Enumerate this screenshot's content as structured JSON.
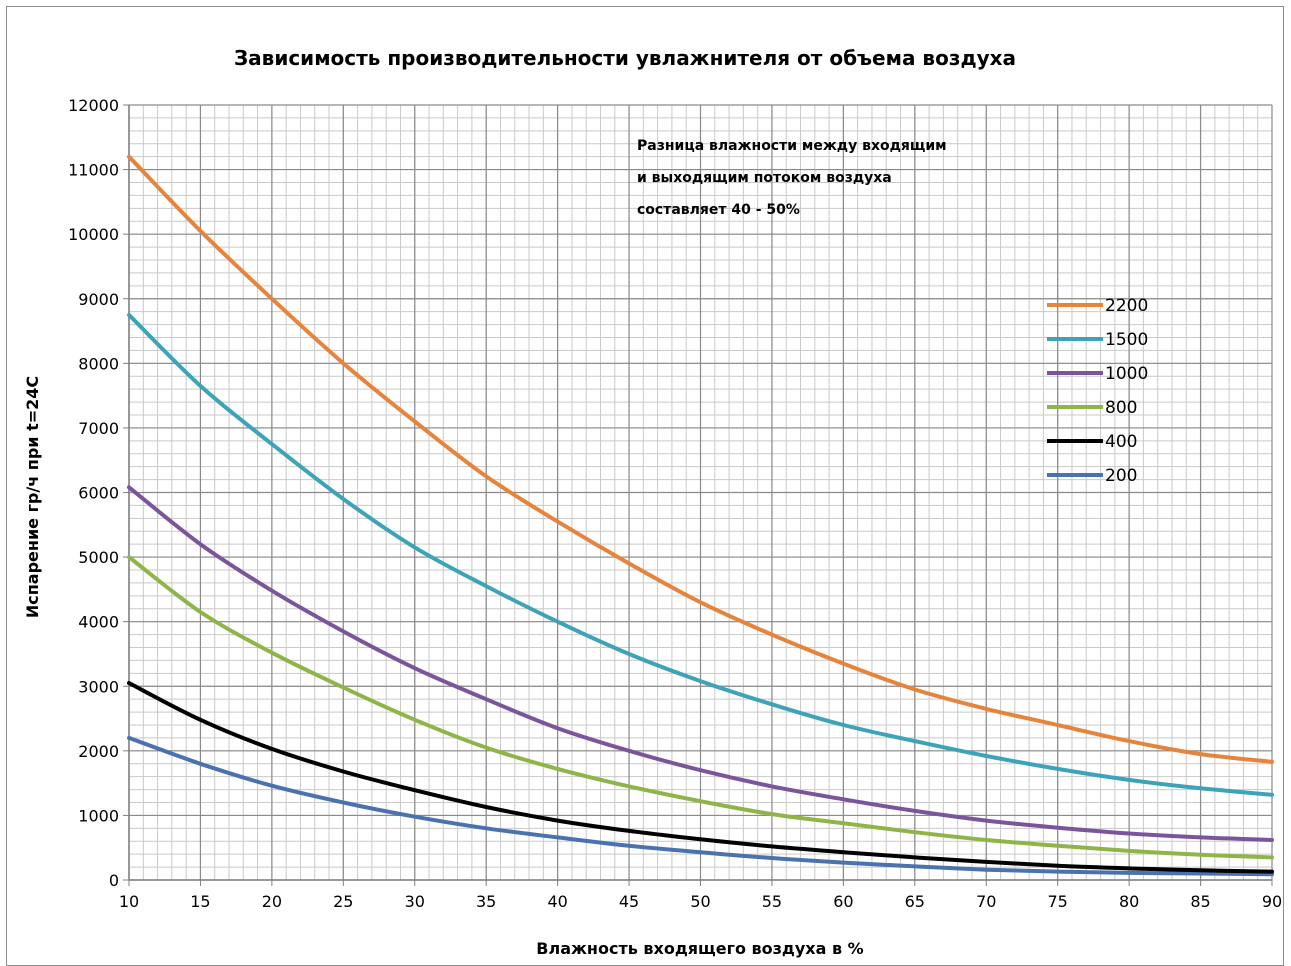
{
  "chart_data": {
    "type": "line",
    "title": "Зависимость производительности увлажнителя от объема воздуха",
    "xlabel": "Влажность входящего воздуха в %",
    "ylabel": "Испарение гр/ч при t=24C",
    "xlim": [
      10,
      90
    ],
    "ylim": [
      0,
      12000
    ],
    "x_ticks": [
      10,
      15,
      20,
      25,
      30,
      35,
      40,
      45,
      50,
      55,
      60,
      65,
      70,
      75,
      80,
      85,
      90
    ],
    "y_ticks": [
      0,
      1000,
      2000,
      3000,
      4000,
      5000,
      6000,
      7000,
      8000,
      9000,
      10000,
      11000,
      12000
    ],
    "grid": true,
    "legend_position": "right",
    "annotation": [
      "Разница влажности между входящим",
      "и выходящим  потоком воздуха",
      "составляет 40 - 50%"
    ],
    "x": [
      10,
      15,
      20,
      25,
      30,
      35,
      40,
      45,
      50,
      55,
      60,
      65,
      70,
      75,
      80,
      85,
      90
    ],
    "series": [
      {
        "name": "2200",
        "color": "#e6843c",
        "values": [
          11200,
          10050,
          9000,
          8000,
          7100,
          6250,
          5550,
          4900,
          4300,
          3800,
          3350,
          2950,
          2650,
          2400,
          2150,
          1950,
          1830
        ]
      },
      {
        "name": "1500",
        "color": "#3ca3b8",
        "values": [
          8750,
          7650,
          6750,
          5900,
          5150,
          4550,
          4000,
          3500,
          3080,
          2720,
          2400,
          2150,
          1920,
          1720,
          1550,
          1420,
          1320
        ]
      },
      {
        "name": "1000",
        "color": "#7b559b",
        "values": [
          6080,
          5200,
          4480,
          3850,
          3280,
          2800,
          2350,
          2000,
          1700,
          1450,
          1250,
          1070,
          920,
          810,
          720,
          660,
          620
        ]
      },
      {
        "name": "800",
        "color": "#8fb548",
        "values": [
          5000,
          4150,
          3520,
          2980,
          2480,
          2050,
          1720,
          1450,
          1220,
          1020,
          880,
          740,
          620,
          530,
          450,
          390,
          350
        ]
      },
      {
        "name": "400",
        "color": "#000000",
        "values": [
          3050,
          2480,
          2030,
          1680,
          1390,
          1130,
          920,
          760,
          630,
          520,
          430,
          350,
          280,
          220,
          180,
          150,
          130
        ]
      },
      {
        "name": "200",
        "color": "#4a72ae",
        "values": [
          2200,
          1800,
          1460,
          1200,
          980,
          800,
          660,
          530,
          430,
          340,
          270,
          210,
          160,
          130,
          110,
          100,
          90
        ]
      }
    ]
  }
}
